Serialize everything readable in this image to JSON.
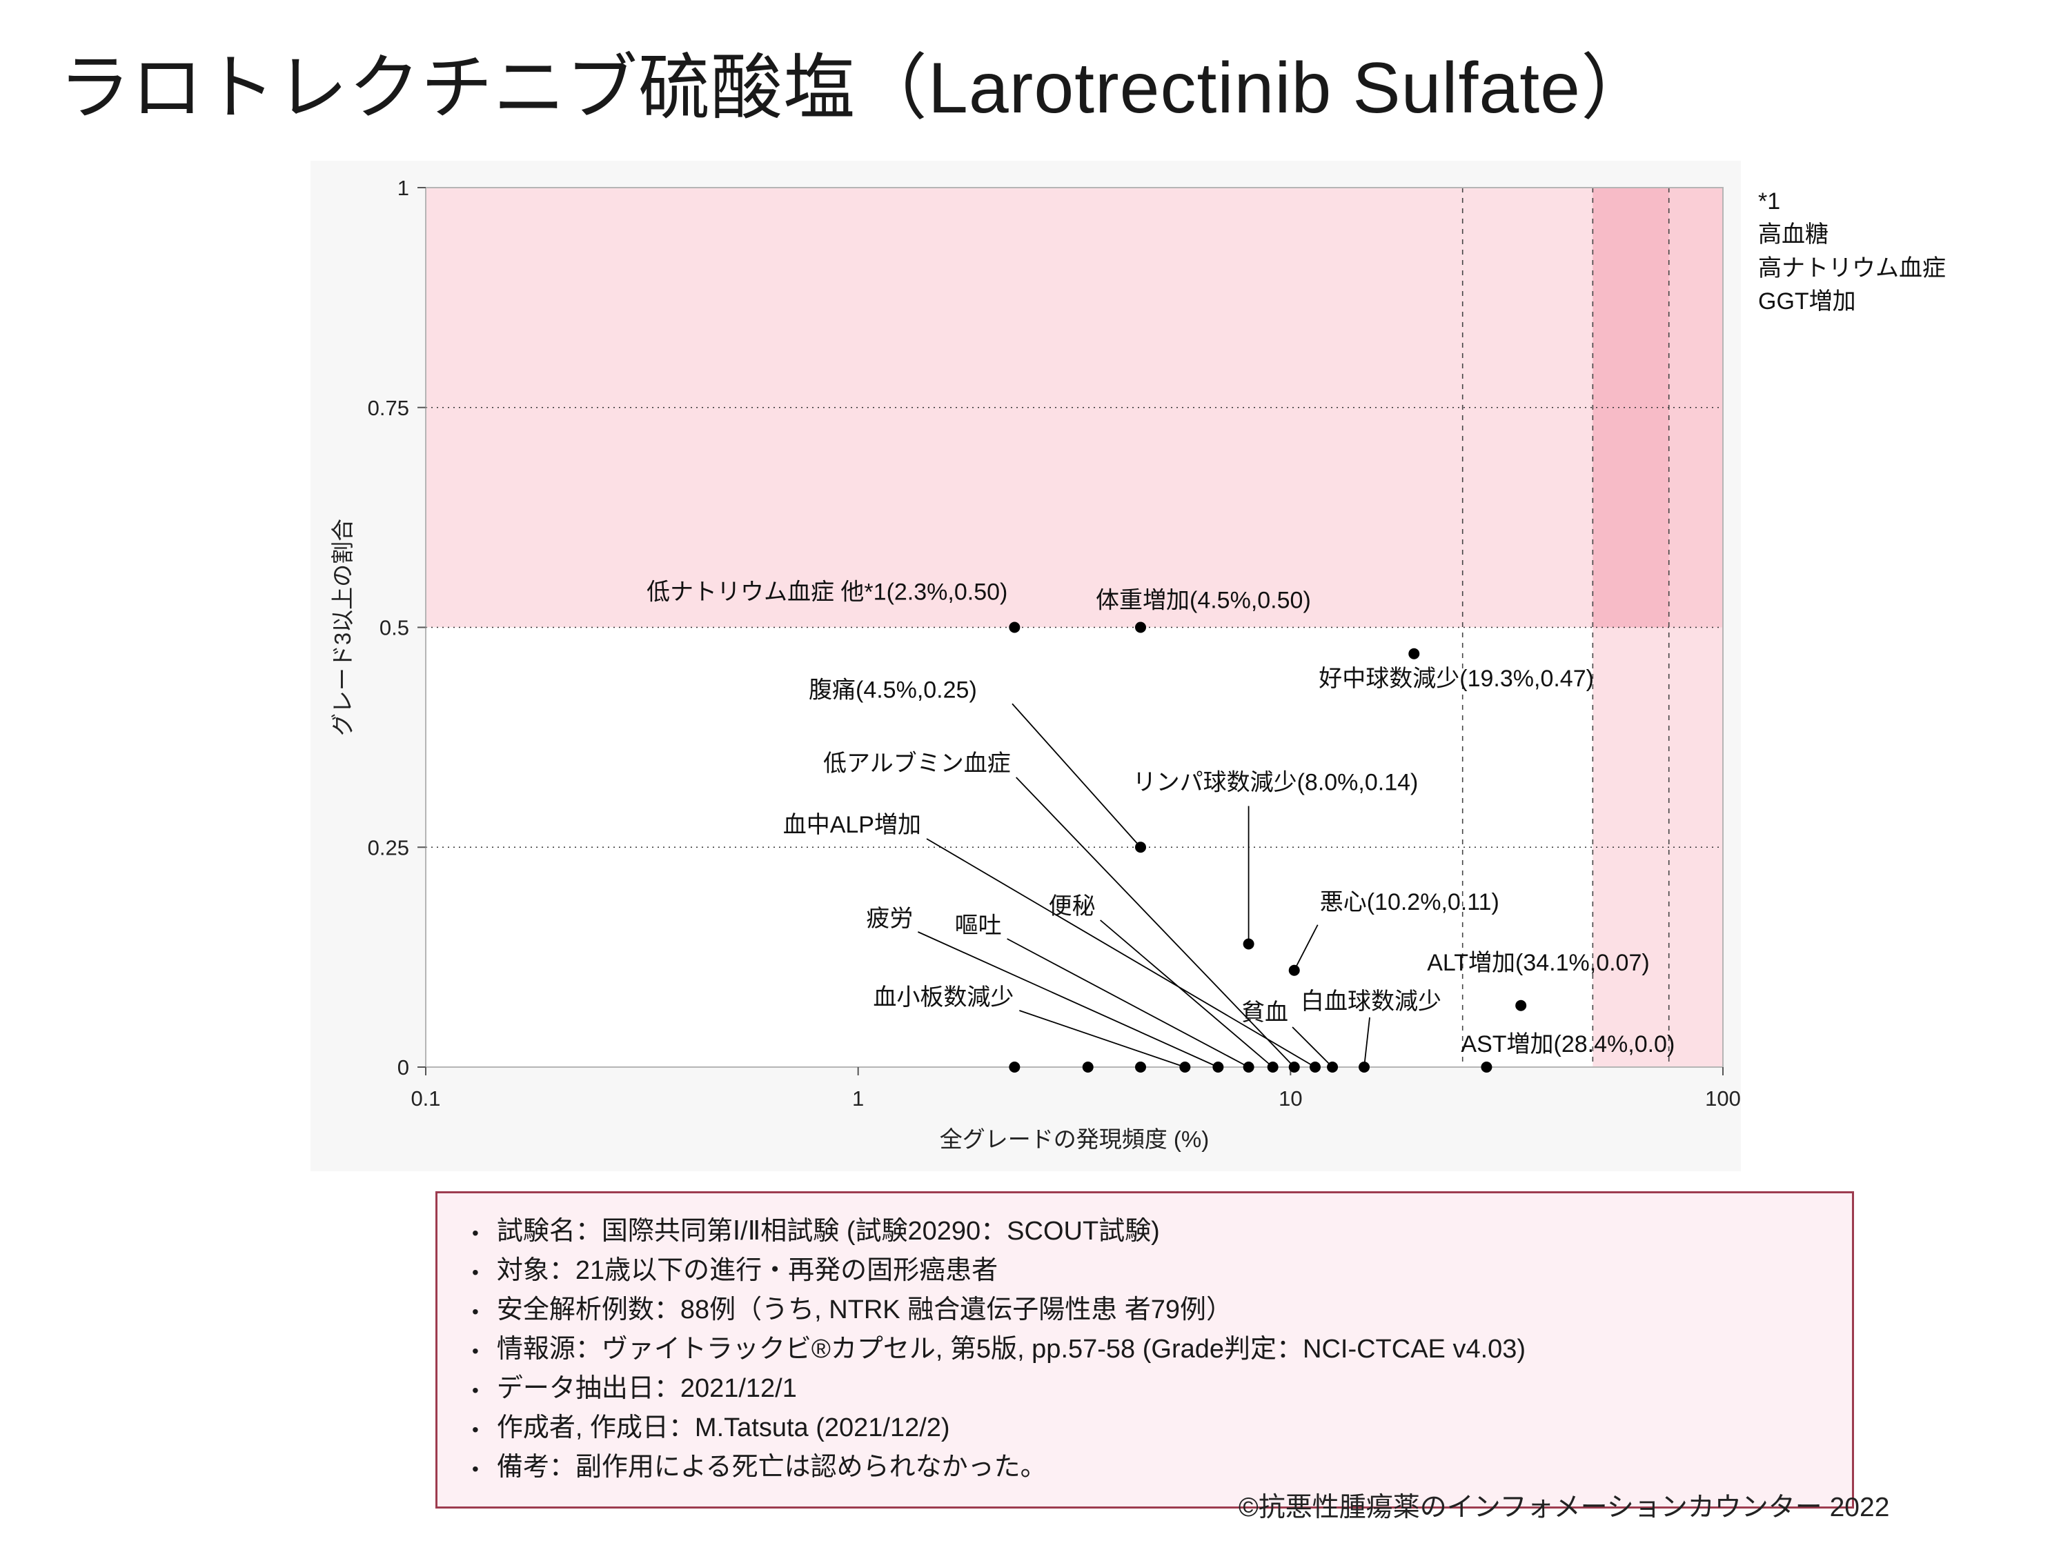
{
  "page": {
    "title": "ラロトレクチニブ硫酸塩（Larotrectinib Sulfate）",
    "footer": "©抗悪性腫瘍薬のインフォメーションカウンター 2022"
  },
  "annotation": {
    "lines": [
      "*1",
      "高血糖",
      "高ナトリウム血症",
      "GGT増加"
    ]
  },
  "info_box": {
    "items": [
      "試験名：国際共同第Ⅰ/Ⅱ相試験 (試験20290：SCOUT試験)",
      "対象：21歳以下の進行・再発の固形癌患者",
      "安全解析例数：88例（うち, NTRK 融合遺伝子陽性患 者79例）",
      "情報源：ヴァイトラックビ®カプセル, 第5版, pp.57-58 (Grade判定：NCI-CTCAE v4.03)",
      "データ抽出日：2021/12/1",
      "作成者, 作成日：M.Tatsuta (2021/12/2)",
      "備考：副作用による死亡は認められなかった。"
    ]
  },
  "chart_data": {
    "type": "scatter",
    "title": "",
    "xlabel": "全グレードの発現頻度 (%)",
    "ylabel": "グレード3以上の割合",
    "x_scale": "log",
    "xlim": [
      0.1,
      100
    ],
    "ylim": [
      0,
      1
    ],
    "x_ticks": [
      "0.1",
      "1",
      "10",
      "100"
    ],
    "y_ticks": [
      "0",
      "0.25",
      "0.5",
      "0.75",
      "1"
    ],
    "h_gridlines": [
      0.25,
      0.5,
      0.75
    ],
    "v_reference_lines": [
      25,
      50,
      75
    ],
    "legend": "none",
    "grid": "dotted",
    "colors": {
      "band": "rgba(247,180,193,0.42)",
      "band_dark": "rgba(240,130,155,0.25)",
      "dot": "#000000",
      "panel": "#f7f7f7",
      "plot_bg": "#ffffff",
      "border": "#b5b5b5"
    },
    "shaded_regions": [
      {
        "x1": 0.1,
        "x2": 100,
        "y1": 0.5,
        "y2": 1,
        "color": "band"
      },
      {
        "x1": 50,
        "x2": 100,
        "y1": 0,
        "y2": 1,
        "color": "band"
      },
      {
        "x1": 50,
        "x2": 75,
        "y1": 0.5,
        "y2": 1,
        "color": "band_dark"
      }
    ],
    "points": [
      {
        "label": "低ナトリウム血症 他*1(2.3%,0.50)",
        "x": 2.3,
        "y": 0.5,
        "anchor": "end",
        "lx": -10,
        "ly": -40,
        "leader_from": null
      },
      {
        "label": "体重増加(4.5%,0.50)",
        "x": 4.5,
        "y": 0.5,
        "anchor": "start",
        "lx": -65,
        "ly": -28,
        "leader_from": null
      },
      {
        "label": "好中球数減少(19.3%,0.47)",
        "x": 19.3,
        "y": 0.47,
        "anchor": "start",
        "lx": -138,
        "ly": 47,
        "leader_from": null
      },
      {
        "label": "腹痛(4.5%,0.25)",
        "x": 4.5,
        "y": 0.25,
        "anchor": "start",
        "lx": -481,
        "ly": -217,
        "leader_from": [
          -186,
          -208
        ]
      },
      {
        "label": "リンパ球数減少(8.0%,0.14)",
        "x": 8.0,
        "y": 0.14,
        "anchor": "start",
        "lx": -168,
        "ly": -223,
        "leader_from": [
          0,
          -200
        ]
      },
      {
        "label": "悪心(10.2%,0.11)",
        "x": 10.2,
        "y": 0.11,
        "anchor": "start",
        "lx": 37,
        "ly": -88,
        "leader_from": [
          34,
          -66
        ]
      },
      {
        "label": "ALT増加(34.1%,0.07)",
        "x": 34.1,
        "y": 0.07,
        "anchor": "start",
        "lx": -136,
        "ly": -51,
        "leader_from": null
      },
      {
        "label": "AST増加(28.4%,0.0)",
        "x": 28.4,
        "y": 0.0,
        "anchor": "start",
        "lx": -37,
        "ly": -22,
        "leader_from": null
      },
      {
        "label": "血小板数減少",
        "x": 5.7,
        "y": 0,
        "anchor": "end",
        "lx": -248,
        "ly": -90,
        "leader_from": [
          -240,
          -82
        ]
      },
      {
        "label": "疲労",
        "x": 6.8,
        "y": 0,
        "anchor": "end",
        "lx": -442,
        "ly": -204,
        "leader_from": [
          -435,
          -196
        ]
      },
      {
        "label": "嘔吐",
        "x": 8.0,
        "y": 0,
        "anchor": "end",
        "lx": -358,
        "ly": -194,
        "leader_from": [
          -350,
          -186
        ]
      },
      {
        "label": "便秘",
        "x": 9.1,
        "y": 0,
        "anchor": "end",
        "lx": -257,
        "ly": -222,
        "leader_from": [
          -250,
          -213
        ]
      },
      {
        "label": "低アルブミン血症",
        "x": 10.2,
        "y": 0,
        "anchor": "end",
        "lx": -411,
        "ly": -429,
        "leader_from": [
          -403,
          -420
        ]
      },
      {
        "label": "血中ALP増加",
        "x": 11.4,
        "y": 0,
        "anchor": "end",
        "lx": -571,
        "ly": -340,
        "leader_from": [
          -563,
          -331
        ]
      },
      {
        "label": "貧血",
        "x": 12.5,
        "y": 0,
        "anchor": "end",
        "lx": -64,
        "ly": -68,
        "leader_from": [
          -58,
          -58
        ]
      },
      {
        "label": "白血球数減少",
        "x": 14.8,
        "y": 0,
        "anchor": "middle",
        "lx": 10,
        "ly": -84,
        "leader_from": [
          8,
          -72
        ]
      }
    ],
    "unlabeled_points": [
      {
        "x": 2.3,
        "y": 0
      },
      {
        "x": 3.4,
        "y": 0
      },
      {
        "x": 4.5,
        "y": 0
      }
    ]
  }
}
